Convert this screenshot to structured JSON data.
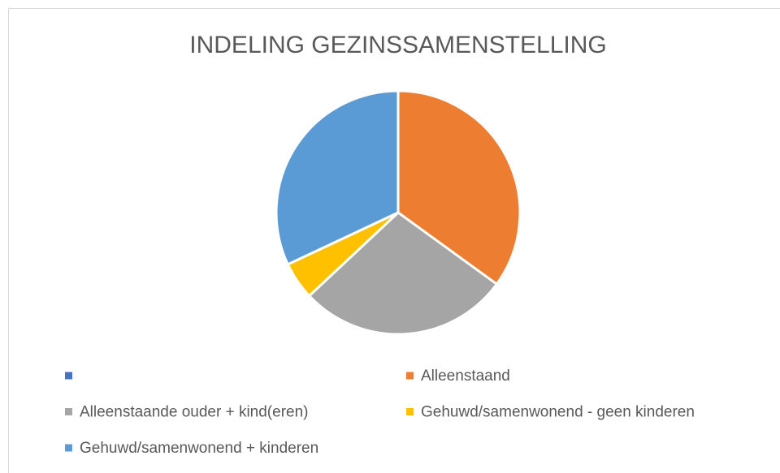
{
  "chart_data": {
    "type": "pie",
    "title": "INDELING GEZINSSAMENSTELLING",
    "categories": [
      null,
      "Alleenstaand",
      "Alleenstaande ouder + kind(eren)",
      "Gehuwd/samenwonend - geen kinderen",
      "Gehuwd/samenwonend + kinderen"
    ],
    "values": [
      0,
      35,
      28,
      5,
      32
    ],
    "colors": [
      "#4472c4",
      "#ed7d31",
      "#a5a5a5",
      "#ffc000",
      "#5b9bd5"
    ],
    "legend": "bottom"
  }
}
